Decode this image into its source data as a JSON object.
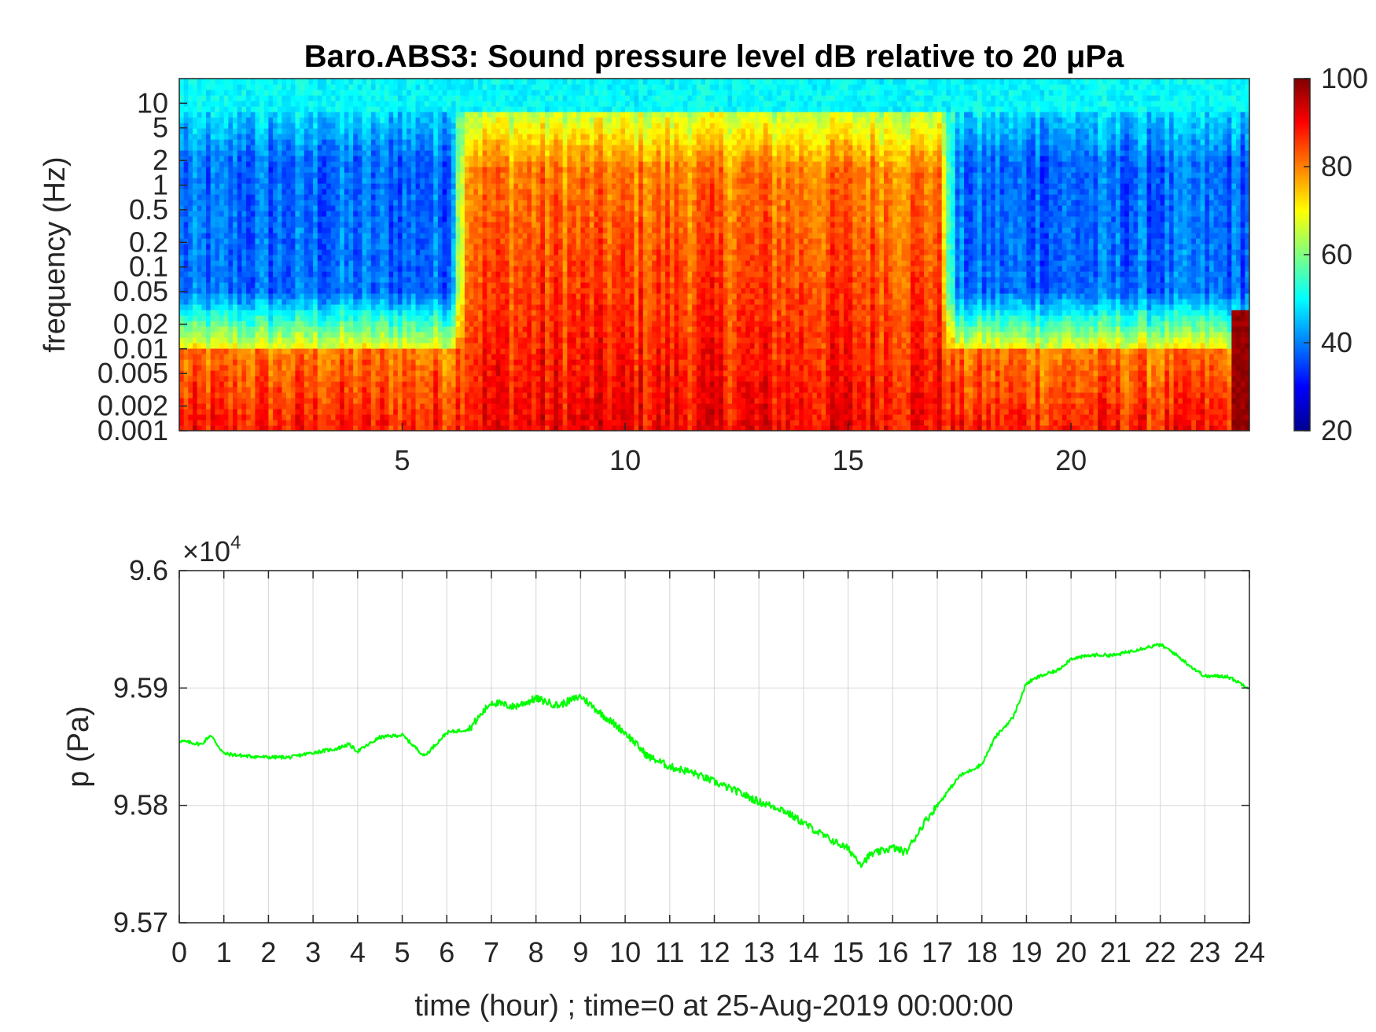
{
  "spectrogram": {
    "chart_data": {
      "type": "heatmap",
      "title": "Baro.ABS3: Sound pressure level dB relative to 20 μPa",
      "ylabel": "frequency (Hz)",
      "xlabel": "",
      "xlim": [
        0,
        24
      ],
      "ylim": [
        0.001,
        20
      ],
      "yscale": "log",
      "xticks": [
        5,
        10,
        15,
        20
      ],
      "xtick_labels": [
        "5",
        "10",
        "15",
        "20"
      ],
      "yticks": [
        0.001,
        0.002,
        0.005,
        0.01,
        0.02,
        0.05,
        0.1,
        0.2,
        0.5,
        1,
        2,
        5,
        10
      ],
      "ytick_labels": [
        "0.001",
        "0.002",
        "0.005",
        "0.01",
        "0.02",
        "0.05",
        "0.1",
        "0.2",
        "0.5",
        "1",
        "2",
        "5",
        "10"
      ],
      "colorbar": {
        "min": 20,
        "max": 100,
        "ticks": [
          "20",
          "40",
          "60",
          "80",
          "100"
        ],
        "colormap": "jet",
        "colors": [
          "#00008f",
          "#0000ff",
          "#00ffff",
          "#ffff00",
          "#ff0000",
          "#800000"
        ]
      },
      "grid": false,
      "approx_levels_db": {
        "high_freq_band": 50,
        "quiet_mid_band": 38,
        "active_mid_band": 78,
        "low_freq_band": 88
      },
      "active_period_hours": [
        6.2,
        17.3
      ]
    }
  },
  "pressure": {
    "chart_data": {
      "type": "line",
      "title": "",
      "xlabel": "time (hour) ; time=0 at 25-Aug-2019 00:00:00",
      "ylabel": "p (Pa)",
      "y_multiplier": "×10",
      "y_multiplier_exp": "4",
      "xlim": [
        0,
        24
      ],
      "ylim": [
        95700,
        96000
      ],
      "xticks": [
        "0",
        "1",
        "2",
        "3",
        "4",
        "5",
        "6",
        "7",
        "8",
        "9",
        "10",
        "11",
        "12",
        "13",
        "14",
        "15",
        "16",
        "17",
        "18",
        "19",
        "20",
        "21",
        "22",
        "23",
        "24"
      ],
      "yticks": [
        "9.57",
        "9.58",
        "9.59",
        "9.6"
      ],
      "grid": true,
      "line_color": "#00ff00",
      "series": [
        {
          "x": [
            0,
            0.5,
            0.7,
            1.0,
            1.5,
            2.0,
            2.5,
            3.0,
            3.5,
            3.8,
            4.0,
            4.5,
            5.0,
            5.5,
            6.0,
            6.5,
            7.0,
            7.5,
            8.0,
            8.5,
            9.0,
            9.5,
            10.0,
            10.5,
            11.0,
            11.5,
            12.0,
            12.5,
            13.0,
            13.5,
            14.0,
            14.5,
            15.0,
            15.3,
            15.5,
            16.0,
            16.3,
            16.7,
            17.0,
            17.5,
            18.0,
            18.3,
            18.7,
            19.0,
            19.3,
            19.7,
            20.0,
            20.5,
            21.0,
            21.5,
            22.0,
            22.3,
            22.7,
            23.0,
            23.5,
            24.0
          ],
          "values": [
            95855,
            95852,
            95860,
            95844,
            95842,
            95841,
            95841,
            95845,
            95848,
            95852,
            95846,
            95858,
            95860,
            95842,
            95862,
            95865,
            95888,
            95884,
            95891,
            95885,
            95893,
            95877,
            95862,
            95842,
            95833,
            95828,
            95820,
            95812,
            95803,
            95797,
            95785,
            95773,
            95763,
            95750,
            95758,
            95764,
            95760,
            95785,
            95800,
            95825,
            95835,
            95858,
            95875,
            95904,
            95910,
            95915,
            95925,
            95928,
            95928,
            95933,
            95937,
            95930,
            95918,
            95910,
            95910,
            95900
          ]
        }
      ]
    }
  }
}
